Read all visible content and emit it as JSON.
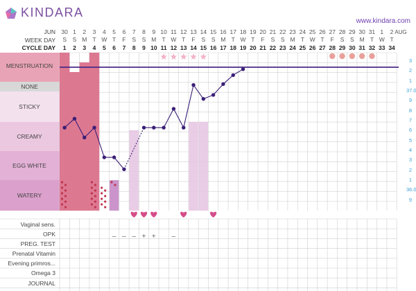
{
  "brand": {
    "name": "KINDARA",
    "url": "www.kindara.com"
  },
  "header": {
    "month_label": "JUN",
    "weekday_label": "WEEK DAY",
    "cycle_label": "CYCLE DAY",
    "dates": [
      "30",
      "1",
      "2",
      "3",
      "4",
      "5",
      "6",
      "7",
      "8",
      "9",
      "10",
      "11",
      "12",
      "13",
      "14",
      "15",
      "16",
      "17",
      "18",
      "19",
      "20",
      "21",
      "22",
      "23",
      "24",
      "25",
      "26",
      "27",
      "28",
      "29",
      "30",
      "31",
      "1",
      "2"
    ],
    "weekdays": [
      "S",
      "S",
      "M",
      "T",
      "W",
      "T",
      "F",
      "S",
      "S",
      "M",
      "T",
      "W",
      "T",
      "F",
      "S",
      "S",
      "M",
      "T",
      "W",
      "T",
      "F",
      "S",
      "S",
      "M",
      "T",
      "W",
      "T",
      "F",
      "S",
      "S",
      "M",
      "T",
      "W",
      "T"
    ],
    "cycle_days": [
      "1",
      "2",
      "3",
      "4",
      "5",
      "6",
      "7",
      "8",
      "9",
      "10",
      "11",
      "12",
      "13",
      "14",
      "15",
      "16",
      "17",
      "18",
      "19",
      "20",
      "21",
      "22",
      "23",
      "24",
      "25",
      "26",
      "27",
      "28",
      "29",
      "30",
      "31",
      "32",
      "33",
      "34"
    ],
    "next_month": "AUG"
  },
  "sections": {
    "menstruation": "MENSTRUATION",
    "none": "NONE",
    "sticky": "STICKY",
    "creamy": "CREAMY",
    "egg_white": "EGG WHITE",
    "watery": "WATERY"
  },
  "temp_axis": [
    "3",
    "2",
    "1",
    "37.0",
    "9",
    "8",
    "7",
    "6",
    "5",
    "4",
    "3",
    "2",
    "1",
    "36.0",
    "9"
  ],
  "opk_marks": [
    "–",
    "–",
    "–",
    "+",
    "+",
    "–"
  ],
  "bottom_rows": [
    "Vaginal sens.",
    "OPK",
    "PREG. TEST",
    "Prenatal Vitamin",
    "Evening primros...",
    "Omega 3",
    "JOURNAL"
  ],
  "colors": {
    "menstruation_bg": "#e9a3b6",
    "menstruation_fill": "#dd7891",
    "none_bg": "#d8d8d8",
    "sticky_bg": "#f4e1ee",
    "creamy_bg": "#ebc8e0",
    "egg_white_bg": "#e3b0d6",
    "watery_bg": "#dba0cb",
    "temp_line": "#3b1f77",
    "coverline": "#4a2a86",
    "heart": "#d54d8a",
    "star": "#f2b3c9",
    "accent_blue": "#3aa0d8"
  },
  "chart_data": {
    "type": "line",
    "title": "",
    "x": [
      1,
      2,
      3,
      4,
      5,
      6,
      7,
      9,
      10,
      11,
      12,
      13,
      14,
      15,
      16,
      17,
      18,
      19
    ],
    "temps_c": [
      36.53,
      36.62,
      36.43,
      36.53,
      36.23,
      36.23,
      36.11,
      36.53,
      36.53,
      36.53,
      36.72,
      36.53,
      36.96,
      36.82,
      36.86,
      36.97,
      37.06,
      37.12
    ],
    "dashed_segment": [
      7,
      9
    ],
    "coverline_c": 37.14,
    "menstruation_days": [
      1,
      2,
      3,
      4
    ],
    "period_forecast_days": [
      28,
      29,
      30,
      31,
      32
    ],
    "fertile_star_days": [
      11,
      12,
      13,
      14,
      15
    ],
    "intercourse_days": [
      8,
      9,
      10,
      13,
      16
    ],
    "cervical_fluid": [
      {
        "day": 6,
        "type": "watery"
      },
      {
        "day": 8,
        "type": "creamy"
      },
      {
        "day": 14,
        "type": "egg white"
      },
      {
        "day": 15,
        "type": "egg white"
      }
    ],
    "opk": [
      {
        "day": 6,
        "result": "–"
      },
      {
        "day": 7,
        "result": "–"
      },
      {
        "day": 8,
        "result": "–"
      },
      {
        "day": 9,
        "result": "+"
      },
      {
        "day": 10,
        "result": "+"
      },
      {
        "day": 12,
        "result": "–"
      }
    ]
  }
}
